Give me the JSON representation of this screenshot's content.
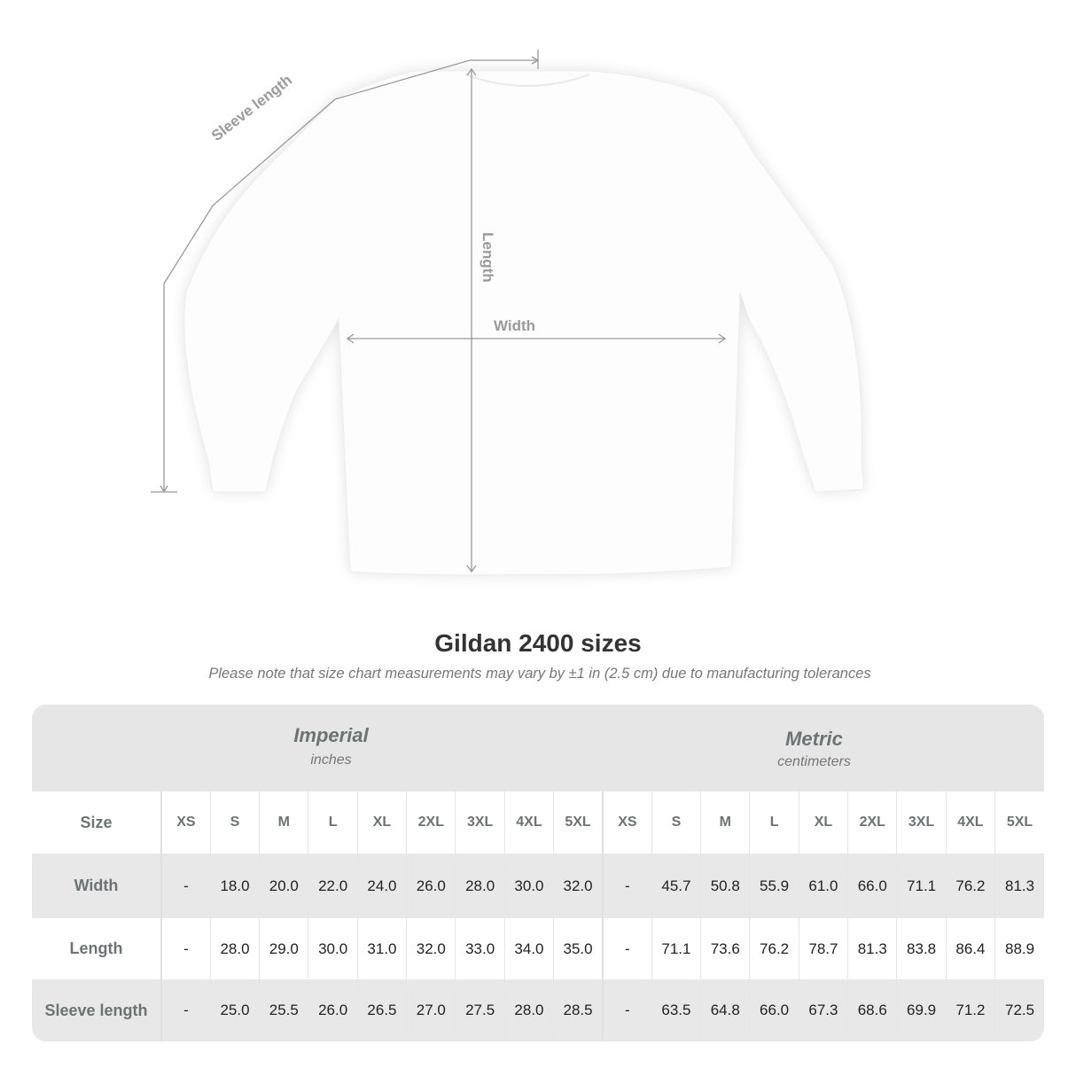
{
  "diagram": {
    "labels": {
      "sleeve": "Sleeve length",
      "length": "Length",
      "width": "Width"
    }
  },
  "title": "Gildan 2400 sizes",
  "note": "Please note that size chart measurements may vary by ±1 in (2.5 cm) due to manufacturing tolerances",
  "table": {
    "imperial": {
      "title": "Imperial",
      "unit": "inches"
    },
    "metric": {
      "title": "Metric",
      "unit": "centimeters"
    },
    "size_label": "Size",
    "sizes": [
      "XS",
      "S",
      "M",
      "L",
      "XL",
      "2XL",
      "3XL",
      "4XL",
      "5XL"
    ],
    "rows": [
      {
        "label": "Width",
        "imperial": [
          "-",
          "18.0",
          "20.0",
          "22.0",
          "24.0",
          "26.0",
          "28.0",
          "30.0",
          "32.0"
        ],
        "metric": [
          "-",
          "45.7",
          "50.8",
          "55.9",
          "61.0",
          "66.0",
          "71.1",
          "76.2",
          "81.3"
        ]
      },
      {
        "label": "Length",
        "imperial": [
          "-",
          "28.0",
          "29.0",
          "30.0",
          "31.0",
          "32.0",
          "33.0",
          "34.0",
          "35.0"
        ],
        "metric": [
          "-",
          "71.1",
          "73.6",
          "76.2",
          "78.7",
          "81.3",
          "83.8",
          "86.4",
          "88.9"
        ]
      },
      {
        "label": "Sleeve length",
        "imperial": [
          "-",
          "25.0",
          "25.5",
          "26.0",
          "26.5",
          "27.0",
          "27.5",
          "28.0",
          "28.5"
        ],
        "metric": [
          "-",
          "63.5",
          "64.8",
          "66.0",
          "67.3",
          "68.6",
          "69.9",
          "71.2",
          "72.5"
        ]
      }
    ]
  }
}
